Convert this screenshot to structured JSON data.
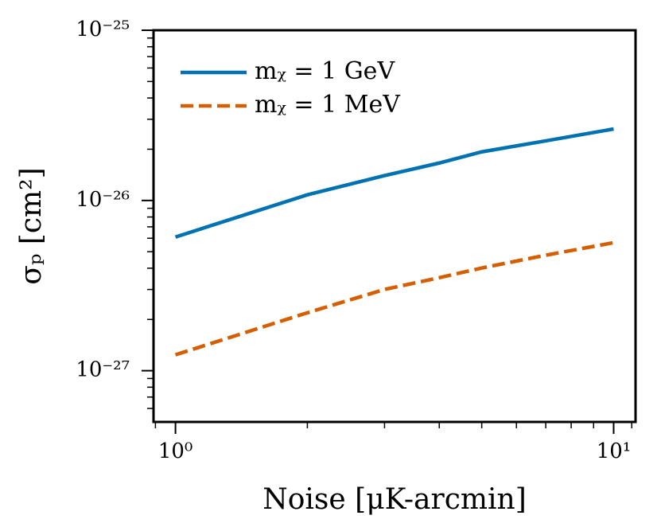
{
  "chart_data": {
    "type": "line",
    "xlabel": "Noise [μK-arcmin]",
    "ylabel": "σₚ [cm²]",
    "xscale": "log",
    "yscale": "log",
    "xlim": [
      0.891,
      11.22
    ],
    "ylim": [
      5e-28,
      1e-25
    ],
    "xticks": [
      {
        "value": 1,
        "label": "10⁰"
      },
      {
        "value": 10,
        "label": "10¹"
      }
    ],
    "xticks_minor": [
      0.9,
      2,
      3,
      4,
      5,
      6,
      7,
      8,
      9,
      11
    ],
    "yticks": [
      {
        "value": 1e-27,
        "label": "10⁻²⁷"
      },
      {
        "value": 1e-26,
        "label": "10⁻²⁶"
      },
      {
        "value": 1e-25,
        "label": "10⁻²⁵"
      }
    ],
    "yticks_minor": [
      6e-28,
      7e-28,
      8e-28,
      9e-28,
      2e-27,
      3e-27,
      4e-27,
      5e-27,
      6e-27,
      7e-27,
      8e-27,
      9e-27,
      2e-26,
      3e-26,
      4e-26,
      5e-26,
      6e-26,
      7e-26,
      8e-26,
      9e-26
    ],
    "legend": "upper left",
    "x": [
      1,
      2,
      3,
      4,
      5,
      7,
      10
    ],
    "series": [
      {
        "name": "mᵪ = 1 GeV",
        "color": "#0072b2",
        "dash": "solid",
        "values": [
          6.1e-27,
          1.08e-26,
          1.4e-26,
          1.66e-26,
          1.93e-26,
          2.24e-26,
          2.63e-26
        ]
      },
      {
        "name": "mᵪ = 1 MeV",
        "color": "#d55e00",
        "dash": "dashed",
        "values": [
          1.24e-27,
          2.19e-27,
          3e-27,
          3.52e-27,
          4.01e-27,
          4.77e-27,
          5.65e-27
        ]
      }
    ]
  }
}
